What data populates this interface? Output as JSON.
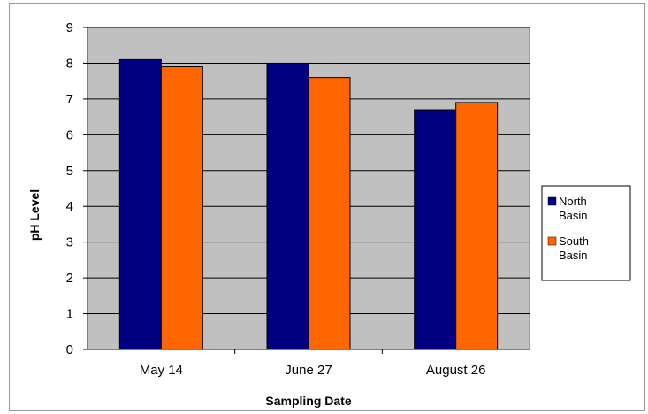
{
  "chart_data": {
    "type": "bar",
    "title": "",
    "xlabel": "Sampling Date",
    "ylabel": "pH Level",
    "categories": [
      "May 14",
      "June 27",
      "August 26"
    ],
    "series": [
      {
        "name": "North Basin",
        "legend_lines": [
          "North",
          "Basin"
        ],
        "color": "#000080",
        "values": [
          8.1,
          8.0,
          6.7
        ]
      },
      {
        "name": "South Basin",
        "legend_lines": [
          "South",
          "Basin"
        ],
        "color": "#FF6600",
        "values": [
          7.9,
          7.6,
          6.9
        ]
      }
    ],
    "ylim": [
      0,
      9
    ],
    "yticks": [
      0,
      1,
      2,
      3,
      4,
      5,
      6,
      7,
      8,
      9
    ],
    "grid": true,
    "legend_position": "right",
    "plot_background": "#C0C0C0"
  }
}
